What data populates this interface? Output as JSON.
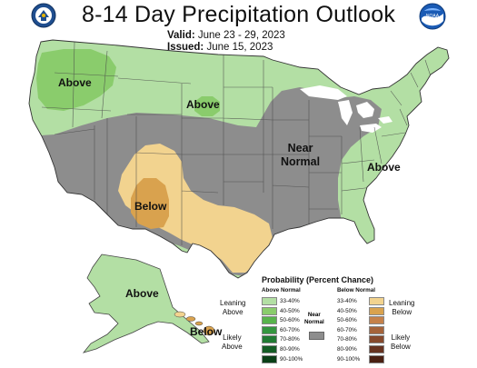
{
  "header": {
    "title": "8-14 Day Precipitation Outlook",
    "valid_label": "Valid:",
    "valid_value": "June 23 - 29, 2023",
    "issued_label": "Issued:",
    "issued_value": "June 15, 2023"
  },
  "logos": {
    "left": "commerce-seal",
    "right": "noaa-logo",
    "right_text": "NOAA"
  },
  "map": {
    "labels": {
      "nw_above": "Above",
      "north_above": "Above",
      "east_above": "Above",
      "near_normal": "Near\nNormal",
      "sw_below": "Below",
      "alaska_above": "Above",
      "hawaii_below": "Below"
    },
    "colors": {
      "above_33_40": "#b3dfa4",
      "above_40_50": "#8acc6c",
      "near_normal": "#8d8d8d",
      "below_33_40": "#f2d38f",
      "below_40_50": "#d9a24e",
      "land_bg": "#b3dfa4",
      "water": "#ffffff",
      "border": "#444444"
    }
  },
  "legend": {
    "title": "Probability (Percent Chance)",
    "above_header": "Above Normal",
    "below_header": "Below Normal",
    "near_header": "Near\nNormal",
    "above_rows": [
      {
        "pct": "33-40%",
        "color": "#b3dfa4"
      },
      {
        "pct": "40-50%",
        "color": "#8acc6c"
      },
      {
        "pct": "50-60%",
        "color": "#58b44c"
      },
      {
        "pct": "60-70%",
        "color": "#34963f"
      },
      {
        "pct": "70-80%",
        "color": "#217a33"
      },
      {
        "pct": "80-90%",
        "color": "#145c25"
      },
      {
        "pct": "90-100%",
        "color": "#0a3f17"
      }
    ],
    "below_rows": [
      {
        "pct": "33-40%",
        "color": "#f2d38f"
      },
      {
        "pct": "40-50%",
        "color": "#d9a24e"
      },
      {
        "pct": "50-60%",
        "color": "#c5814a"
      },
      {
        "pct": "60-70%",
        "color": "#a5633a"
      },
      {
        "pct": "70-80%",
        "color": "#86492c"
      },
      {
        "pct": "80-90%",
        "color": "#673320"
      },
      {
        "pct": "90-100%",
        "color": "#4a2012"
      }
    ],
    "leaning_above": "Leaning\nAbove",
    "likely_above": "Likely\nAbove",
    "leaning_below": "Leaning\nBelow",
    "likely_below": "Likely\nBelow"
  }
}
